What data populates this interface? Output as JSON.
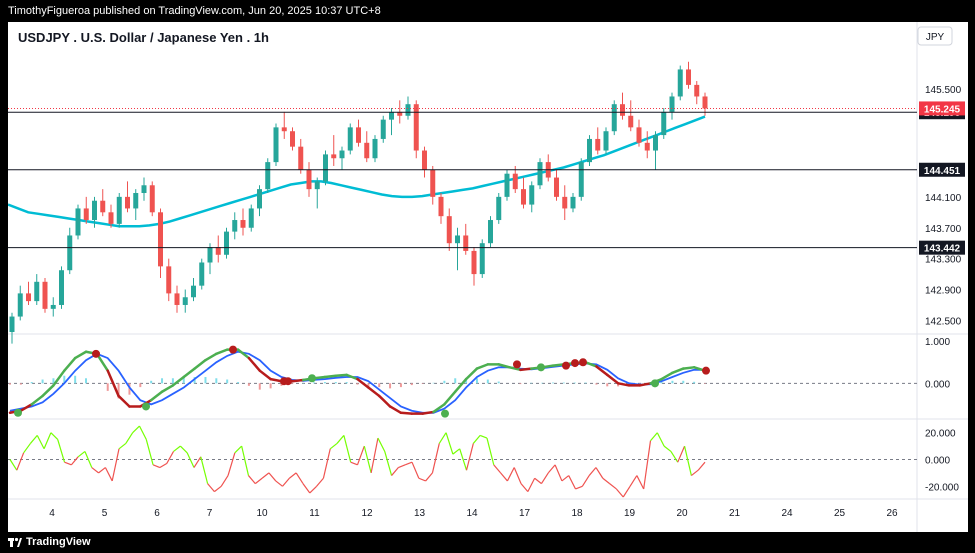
{
  "header": {
    "text": "TimothyFigueroa published on TradingView.com, Jun 20, 2025 10:37 UTC+8"
  },
  "footer": {
    "brand": "TradingView"
  },
  "chart_data": {
    "type": "candlestick",
    "title": "USDJPY . U.S. Dollar / Japanese Yen . 1h",
    "currency": "JPY",
    "price_axis": {
      "ticks": [
        "145.500",
        "144.100",
        "143.700",
        "143.300",
        "142.900",
        "142.500"
      ],
      "tick_values": [
        145.5,
        144.1,
        143.7,
        143.3,
        142.9,
        142.5
      ],
      "range": [
        142.35,
        145.95
      ]
    },
    "x_axis": {
      "ticks": [
        "4",
        "5",
        "6",
        "7",
        "10",
        "11",
        "12",
        "13",
        "14",
        "17",
        "18",
        "19",
        "20",
        "21",
        "24",
        "25",
        "26"
      ]
    },
    "current_price": {
      "label": "145.245",
      "value": 145.245,
      "color": "#f23645"
    },
    "horizontal_levels": [
      {
        "label": "145.196",
        "value": 145.196
      },
      {
        "label": "144.451",
        "value": 144.451
      },
      {
        "label": "143.442",
        "value": 143.442
      }
    ],
    "candles": [
      [
        142.35,
        142.6,
        142.2,
        142.55
      ],
      [
        142.55,
        142.95,
        142.5,
        142.85
      ],
      [
        142.85,
        143.0,
        142.7,
        142.75
      ],
      [
        142.75,
        143.1,
        142.7,
        143.0
      ],
      [
        143.0,
        143.05,
        142.6,
        142.65
      ],
      [
        142.65,
        142.8,
        142.55,
        142.7
      ],
      [
        142.7,
        143.2,
        142.65,
        143.15
      ],
      [
        143.15,
        143.7,
        143.1,
        143.6
      ],
      [
        143.6,
        144.0,
        143.55,
        143.95
      ],
      [
        143.95,
        144.1,
        143.75,
        143.8
      ],
      [
        143.8,
        144.1,
        143.7,
        144.05
      ],
      [
        144.05,
        144.2,
        143.85,
        143.9
      ],
      [
        143.9,
        144.0,
        143.7,
        143.75
      ],
      [
        143.75,
        144.15,
        143.7,
        144.1
      ],
      [
        144.1,
        144.3,
        143.9,
        143.95
      ],
      [
        143.95,
        144.2,
        143.8,
        144.15
      ],
      [
        144.15,
        144.35,
        144.05,
        144.25
      ],
      [
        144.25,
        144.3,
        143.85,
        143.9
      ],
      [
        143.9,
        143.95,
        143.05,
        143.2
      ],
      [
        143.2,
        143.3,
        142.75,
        142.85
      ],
      [
        142.85,
        142.95,
        142.6,
        142.7
      ],
      [
        142.7,
        142.9,
        142.6,
        142.8
      ],
      [
        142.8,
        143.05,
        142.75,
        142.95
      ],
      [
        142.95,
        143.3,
        142.9,
        143.25
      ],
      [
        143.25,
        143.5,
        143.1,
        143.45
      ],
      [
        143.45,
        143.6,
        143.25,
        143.35
      ],
      [
        143.35,
        143.7,
        143.3,
        143.65
      ],
      [
        143.65,
        143.9,
        143.55,
        143.8
      ],
      [
        143.8,
        143.95,
        143.6,
        143.7
      ],
      [
        143.7,
        144.0,
        143.65,
        143.95
      ],
      [
        143.95,
        144.25,
        143.85,
        144.2
      ],
      [
        144.2,
        144.6,
        144.15,
        144.55
      ],
      [
        144.55,
        145.05,
        144.5,
        145.0
      ],
      [
        145.0,
        145.2,
        144.85,
        144.95
      ],
      [
        144.95,
        145.0,
        144.7,
        144.75
      ],
      [
        144.75,
        144.85,
        144.4,
        144.45
      ],
      [
        144.45,
        144.55,
        144.1,
        144.2
      ],
      [
        144.2,
        144.35,
        143.95,
        144.3
      ],
      [
        144.3,
        144.7,
        144.25,
        144.65
      ],
      [
        144.65,
        144.9,
        144.5,
        144.6
      ],
      [
        144.6,
        144.75,
        144.45,
        144.7
      ],
      [
        144.7,
        145.05,
        144.65,
        145.0
      ],
      [
        145.0,
        145.1,
        144.75,
        144.8
      ],
      [
        144.8,
        144.95,
        144.55,
        144.6
      ],
      [
        144.6,
        144.9,
        144.55,
        144.85
      ],
      [
        144.85,
        145.15,
        144.8,
        145.1
      ],
      [
        145.1,
        145.25,
        144.9,
        145.2
      ],
      [
        145.2,
        145.35,
        145.05,
        145.15
      ],
      [
        145.15,
        145.4,
        145.1,
        145.3
      ],
      [
        145.3,
        145.35,
        144.6,
        144.7
      ],
      [
        144.7,
        144.75,
        144.35,
        144.45
      ],
      [
        144.45,
        144.5,
        144.0,
        144.1
      ],
      [
        144.1,
        144.15,
        143.75,
        143.85
      ],
      [
        143.85,
        143.95,
        143.4,
        143.5
      ],
      [
        143.5,
        143.7,
        143.15,
        143.6
      ],
      [
        143.6,
        143.75,
        143.35,
        143.4
      ],
      [
        143.4,
        143.45,
        142.95,
        143.1
      ],
      [
        143.1,
        143.55,
        143.05,
        143.5
      ],
      [
        143.5,
        143.85,
        143.45,
        143.8
      ],
      [
        143.8,
        144.15,
        143.75,
        144.1
      ],
      [
        144.1,
        144.45,
        144.05,
        144.4
      ],
      [
        144.4,
        144.5,
        144.15,
        144.2
      ],
      [
        144.2,
        144.35,
        143.95,
        144.0
      ],
      [
        144.0,
        144.3,
        143.9,
        144.25
      ],
      [
        144.25,
        144.6,
        144.2,
        144.55
      ],
      [
        144.55,
        144.65,
        144.3,
        144.35
      ],
      [
        144.35,
        144.45,
        144.05,
        144.1
      ],
      [
        144.1,
        144.25,
        143.8,
        143.95
      ],
      [
        143.95,
        144.15,
        143.9,
        144.1
      ],
      [
        144.1,
        144.6,
        144.05,
        144.55
      ],
      [
        144.55,
        144.9,
        144.5,
        144.85
      ],
      [
        144.85,
        145.0,
        144.65,
        144.7
      ],
      [
        144.7,
        145.0,
        144.65,
        144.95
      ],
      [
        144.95,
        145.35,
        144.9,
        145.3
      ],
      [
        145.3,
        145.45,
        145.1,
        145.15
      ],
      [
        145.15,
        145.35,
        144.95,
        145.0
      ],
      [
        145.0,
        145.1,
        144.75,
        144.8
      ],
      [
        144.8,
        144.95,
        144.6,
        144.7
      ],
      [
        144.7,
        144.95,
        144.45,
        144.9
      ],
      [
        144.9,
        145.25,
        144.85,
        145.2
      ],
      [
        145.2,
        145.45,
        145.1,
        145.4
      ],
      [
        145.4,
        145.8,
        145.35,
        145.75
      ],
      [
        145.75,
        145.85,
        145.5,
        145.55
      ],
      [
        145.55,
        145.6,
        145.3,
        145.4
      ],
      [
        145.4,
        145.45,
        145.15,
        145.245
      ]
    ],
    "ma_line": {
      "color": "#00bcd4",
      "values": [
        144.0,
        143.95,
        143.9,
        143.88,
        143.86,
        143.84,
        143.82,
        143.8,
        143.78,
        143.76,
        143.74,
        143.72,
        143.72,
        143.72,
        143.73,
        143.75,
        143.78,
        143.82,
        143.86,
        143.9,
        143.94,
        143.98,
        144.02,
        144.06,
        144.1,
        144.14,
        144.18,
        144.22,
        144.26,
        144.28,
        144.3,
        144.3,
        144.28,
        144.25,
        144.22,
        144.19,
        144.16,
        144.13,
        144.11,
        144.1,
        144.1,
        144.11,
        144.13,
        144.15,
        144.17,
        144.19,
        144.21,
        144.24,
        144.27,
        144.3,
        144.33,
        144.36,
        144.39,
        144.42,
        144.45,
        144.48,
        144.52,
        144.56,
        144.6,
        144.64,
        144.69,
        144.74,
        144.79,
        144.84,
        144.89,
        144.94,
        144.99,
        145.04,
        145.09,
        145.14
      ]
    },
    "oscillator_1": {
      "ticks": [
        "1.000",
        "0.000"
      ],
      "tick_values": [
        1.0,
        0.0
      ],
      "range": [
        -0.8,
        1.1
      ],
      "fast": [
        -0.7,
        -0.65,
        -0.5,
        -0.3,
        -0.05,
        0.3,
        0.6,
        0.75,
        0.7,
        0.3,
        -0.3,
        -0.55,
        -0.55,
        -0.4,
        -0.2,
        -0.05,
        0.15,
        0.35,
        0.55,
        0.7,
        0.8,
        0.8,
        0.6,
        0.3,
        0.1,
        0.05,
        0.05,
        0.08,
        0.12,
        0.15,
        0.18,
        0.2,
        0.1,
        -0.1,
        -0.3,
        -0.55,
        -0.7,
        -0.72,
        -0.72,
        -0.68,
        -0.5,
        -0.2,
        0.1,
        0.35,
        0.45,
        0.45,
        0.38,
        0.32,
        0.35,
        0.38,
        0.42,
        0.45,
        0.48,
        0.5,
        0.4,
        0.2,
        0.0,
        -0.05,
        -0.05,
        0.0,
        0.1,
        0.25,
        0.35,
        0.38,
        0.3
      ],
      "slow": [
        -0.65,
        -0.6,
        -0.55,
        -0.45,
        -0.25,
        0.0,
        0.3,
        0.55,
        0.7,
        0.6,
        0.3,
        -0.1,
        -0.4,
        -0.5,
        -0.4,
        -0.25,
        -0.1,
        0.1,
        0.3,
        0.5,
        0.65,
        0.75,
        0.7,
        0.55,
        0.3,
        0.15,
        0.08,
        0.06,
        0.08,
        0.1,
        0.13,
        0.15,
        0.15,
        0.05,
        -0.15,
        -0.35,
        -0.55,
        -0.65,
        -0.7,
        -0.7,
        -0.6,
        -0.4,
        -0.1,
        0.15,
        0.3,
        0.38,
        0.38,
        0.35,
        0.33,
        0.36,
        0.39,
        0.42,
        0.45,
        0.47,
        0.45,
        0.32,
        0.12,
        0.0,
        -0.03,
        -0.02,
        0.05,
        0.15,
        0.25,
        0.32,
        0.32
      ],
      "dot_values": [
        -0.7,
        0.7,
        -0.55,
        0.8,
        0.05,
        0.05,
        0.12,
        -0.72,
        0.45,
        0.38,
        0.42,
        0.48,
        0.5,
        0.0,
        0.3
      ],
      "dot_types": [
        "green",
        "red",
        "green",
        "red",
        "red",
        "red",
        "green",
        "green",
        "red",
        "green",
        "red",
        "red",
        "red",
        "green",
        "red"
      ],
      "dot_colors": {
        "green": "#4caf50",
        "red": "#b71c1c"
      }
    },
    "oscillator_2": {
      "ticks": [
        "20.000",
        "0.000",
        "-20.000"
      ],
      "tick_values": [
        20,
        0,
        -20
      ],
      "range": [
        -28,
        28
      ],
      "values": [
        0,
        -8,
        5,
        12,
        18,
        8,
        20,
        15,
        -2,
        -4,
        2,
        6,
        -6,
        -10,
        -6,
        -16,
        8,
        12,
        20,
        25,
        15,
        -4,
        -6,
        -3,
        6,
        10,
        5,
        -6,
        2,
        -18,
        -24,
        -20,
        -12,
        5,
        10,
        -12,
        -18,
        -14,
        -10,
        -16,
        -20,
        -14,
        -10,
        -18,
        -25,
        -20,
        -14,
        8,
        12,
        18,
        -2,
        -4,
        10,
        -10,
        16,
        6,
        -12,
        -6,
        -4,
        -2,
        -14,
        -16,
        -10,
        12,
        20,
        4,
        8,
        -8,
        12,
        18,
        16,
        -4,
        -10,
        -16,
        -6,
        -18,
        -24,
        -14,
        -18,
        -10,
        -4,
        -16,
        -12,
        -22,
        -20,
        -12,
        -6,
        -14,
        -18,
        -22,
        -28,
        -20,
        -12,
        -22,
        14,
        20,
        10,
        6,
        -2,
        10,
        -12,
        -8,
        -2
      ]
    }
  }
}
